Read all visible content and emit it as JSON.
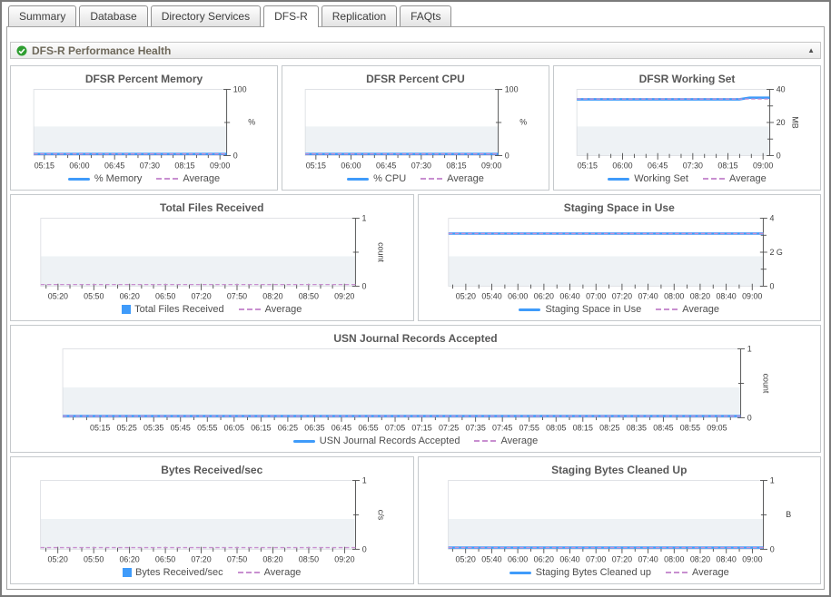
{
  "tabs": [
    {
      "label": "Summary",
      "active": false
    },
    {
      "label": "Database",
      "active": false
    },
    {
      "label": "Directory Services",
      "active": false
    },
    {
      "label": "DFS-R",
      "active": true
    },
    {
      "label": "Replication",
      "active": false
    },
    {
      "label": "FAQts",
      "active": false
    }
  ],
  "section": {
    "title": "DFS-R Performance Health",
    "status": "normal",
    "status_icon": "green-check-icon",
    "collapse_icon": "collapse-up-arrow"
  },
  "legend_average": "Average",
  "colors": {
    "series_blue": "#3f9bfa",
    "average_purple": "#c88fd0",
    "axis": "#4b4b4b",
    "plot_border": "#dcdfe3",
    "plot_band": "#eef2f5",
    "tick_text": "#3d3d3d"
  },
  "charts": [
    {
      "type": "line",
      "title": "DFSR Percent Memory",
      "unit": "%",
      "ylim": [
        0,
        100
      ],
      "y_ticks": [
        {
          "pos": 0,
          "label": "0"
        },
        {
          "pos": 0.5,
          "label": ""
        },
        {
          "pos": 1,
          "label": "100"
        }
      ],
      "x_labels": [
        "05:15",
        "06:00",
        "06:45",
        "07:30",
        "08:15",
        "09:00"
      ],
      "minor_ticks_between": 2,
      "series": [
        {
          "name": "% Memory",
          "type": "line",
          "values": [
            2,
            2
          ]
        }
      ],
      "average": {
        "name": "Average",
        "value": 2
      }
    },
    {
      "type": "line",
      "title": "DFSR Percent CPU",
      "unit": "%",
      "ylim": [
        0,
        100
      ],
      "y_ticks": [
        {
          "pos": 0,
          "label": "0"
        },
        {
          "pos": 0.5,
          "label": ""
        },
        {
          "pos": 1,
          "label": "100"
        }
      ],
      "x_labels": [
        "05:15",
        "06:00",
        "06:45",
        "07:30",
        "08:15",
        "09:00"
      ],
      "minor_ticks_between": 2,
      "series": [
        {
          "name": "% CPU",
          "type": "line",
          "values": [
            2,
            2
          ]
        }
      ],
      "average": {
        "name": "Average",
        "value": 2
      }
    },
    {
      "type": "line",
      "title": "DFSR Working Set",
      "unit": "MB",
      "ylim": [
        0,
        40
      ],
      "y_ticks": [
        {
          "pos": 0,
          "label": "0"
        },
        {
          "pos": 0.25,
          "label": ""
        },
        {
          "pos": 0.5,
          "label": "20"
        },
        {
          "pos": 0.75,
          "label": ""
        },
        {
          "pos": 1,
          "label": "40"
        }
      ],
      "x_labels": [
        "05:15",
        "06:00",
        "06:45",
        "07:30",
        "08:15",
        "09:00"
      ],
      "minor_ticks_between": 2,
      "series": [
        {
          "name": "Working Set",
          "type": "line",
          "values": [
            34,
            34,
            34,
            34,
            34,
            34,
            34,
            34,
            34,
            34,
            34,
            34,
            34,
            34,
            34,
            34,
            34,
            35,
            35,
            35
          ]
        }
      ],
      "average": {
        "name": "Average",
        "value": 34.2
      }
    },
    {
      "type": "bar",
      "title": "Total Files Received",
      "unit": "count",
      "ylim": [
        0,
        1
      ],
      "y_ticks": [
        {
          "pos": 0,
          "label": "0"
        },
        {
          "pos": 0.5,
          "label": ""
        },
        {
          "pos": 1,
          "label": "1"
        }
      ],
      "x_labels": [
        "05:20",
        "05:50",
        "06:20",
        "06:50",
        "07:20",
        "07:50",
        "08:20",
        "08:50",
        "09:20"
      ],
      "minor_ticks_between": 2,
      "series": [
        {
          "name": "Total Files Received",
          "type": "bar",
          "values": [
            0,
            0
          ]
        }
      ],
      "average": {
        "name": "Average",
        "value": 0
      }
    },
    {
      "type": "line",
      "title": "Staging Space in Use",
      "unit": "",
      "ylim": [
        0,
        4
      ],
      "y_ticks": [
        {
          "pos": 0,
          "label": "0"
        },
        {
          "pos": 0.25,
          "label": ""
        },
        {
          "pos": 0.5,
          "label": "2 G"
        },
        {
          "pos": 0.75,
          "label": ""
        },
        {
          "pos": 1,
          "label": "4"
        }
      ],
      "x_labels": [
        "05:20",
        "05:40",
        "06:00",
        "06:20",
        "06:40",
        "07:00",
        "07:20",
        "07:40",
        "08:00",
        "08:20",
        "08:40",
        "09:00"
      ],
      "minor_ticks_between": 1,
      "series": [
        {
          "name": "Staging Space in Use",
          "type": "line",
          "values": [
            3.1,
            3.1
          ]
        }
      ],
      "average": {
        "name": "Average",
        "value": 3.1
      }
    },
    {
      "type": "line",
      "title": "USN Journal Records Accepted",
      "unit": "count",
      "ylim": [
        0,
        1
      ],
      "y_ticks": [
        {
          "pos": 0,
          "label": "0"
        },
        {
          "pos": 0.5,
          "label": ""
        },
        {
          "pos": 1,
          "label": "1"
        }
      ],
      "x_labels": [
        "05:15",
        "05:25",
        "05:35",
        "05:45",
        "05:55",
        "06:05",
        "06:15",
        "06:25",
        "06:35",
        "06:45",
        "06:55",
        "07:05",
        "07:15",
        "07:25",
        "07:35",
        "07:45",
        "07:55",
        "08:05",
        "08:15",
        "08:25",
        "08:35",
        "08:45",
        "08:55",
        "09:05"
      ],
      "minor_ticks_between": 1,
      "series": [
        {
          "name": "USN Journal Records Accepted",
          "type": "line",
          "values": [
            0,
            0
          ]
        }
      ],
      "average": {
        "name": "Average",
        "value": 0
      }
    },
    {
      "type": "bar",
      "title": "Bytes Received/sec",
      "unit": "c/s",
      "ylim": [
        0,
        1
      ],
      "y_ticks": [
        {
          "pos": 0,
          "label": "0"
        },
        {
          "pos": 0.5,
          "label": ""
        },
        {
          "pos": 1,
          "label": "1"
        }
      ],
      "x_labels": [
        "05:20",
        "05:50",
        "06:20",
        "06:50",
        "07:20",
        "07:50",
        "08:20",
        "08:50",
        "09:20"
      ],
      "minor_ticks_between": 2,
      "series": [
        {
          "name": "Bytes Received/sec",
          "type": "bar",
          "values": [
            0,
            0
          ]
        }
      ],
      "average": {
        "name": "Average",
        "value": 0
      }
    },
    {
      "type": "line",
      "title": "Staging Bytes Cleaned Up",
      "unit": "B",
      "ylim": [
        0,
        1
      ],
      "y_ticks": [
        {
          "pos": 0,
          "label": "0"
        },
        {
          "pos": 0.5,
          "label": ""
        },
        {
          "pos": 1,
          "label": "1"
        }
      ],
      "x_labels": [
        "05:20",
        "05:40",
        "06:00",
        "06:20",
        "06:40",
        "07:00",
        "07:20",
        "07:40",
        "08:00",
        "08:20",
        "08:40",
        "09:00"
      ],
      "minor_ticks_between": 1,
      "series": [
        {
          "name": "Staging Bytes Cleaned up",
          "type": "line",
          "values": [
            0,
            0
          ]
        }
      ],
      "average": {
        "name": "Average",
        "value": 0
      }
    }
  ]
}
